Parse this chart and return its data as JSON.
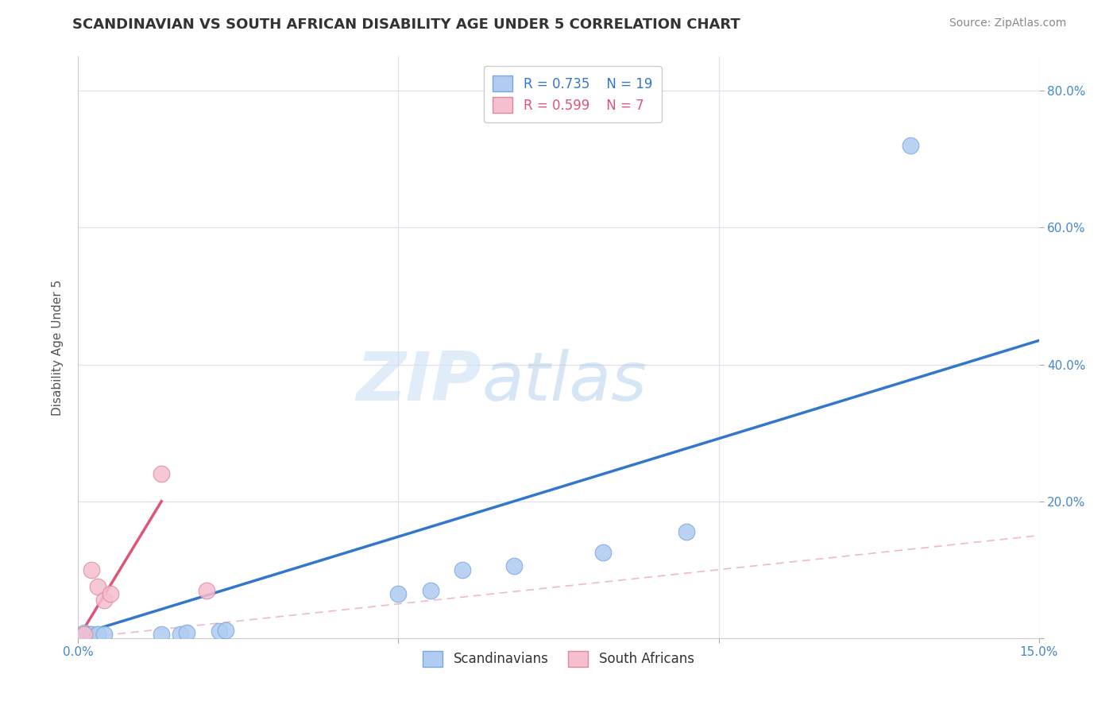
{
  "title": "SCANDINAVIAN VS SOUTH AFRICAN DISABILITY AGE UNDER 5 CORRELATION CHART",
  "source": "Source: ZipAtlas.com",
  "ylabel": "Disability Age Under 5",
  "xlim": [
    0.0,
    0.15
  ],
  "ylim": [
    0.0,
    0.85
  ],
  "grid_color": "#e0e0ee",
  "background_color": "#ffffff",
  "watermark_zip": "ZIP",
  "watermark_atlas": "atlas",
  "scand_points": [
    [
      0.001,
      0.005
    ],
    [
      0.001,
      0.008
    ],
    [
      0.002,
      0.005
    ],
    [
      0.002,
      0.006
    ],
    [
      0.003,
      0.005
    ],
    [
      0.003,
      0.006
    ],
    [
      0.004,
      0.005
    ],
    [
      0.013,
      0.005
    ],
    [
      0.016,
      0.005
    ],
    [
      0.017,
      0.008
    ],
    [
      0.022,
      0.01
    ],
    [
      0.023,
      0.011
    ],
    [
      0.05,
      0.065
    ],
    [
      0.055,
      0.07
    ],
    [
      0.06,
      0.1
    ],
    [
      0.068,
      0.105
    ],
    [
      0.082,
      0.125
    ],
    [
      0.095,
      0.155
    ],
    [
      0.13,
      0.72
    ]
  ],
  "sa_points": [
    [
      0.001,
      0.005
    ],
    [
      0.002,
      0.1
    ],
    [
      0.003,
      0.075
    ],
    [
      0.004,
      0.055
    ],
    [
      0.005,
      0.065
    ],
    [
      0.013,
      0.24
    ],
    [
      0.02,
      0.07
    ]
  ],
  "scand_color": "#b0ccf0",
  "scand_edge_color": "#7aa8dd",
  "sa_color": "#f5bfce",
  "sa_edge_color": "#dd88a0",
  "scand_line_color": "#3377cc",
  "sa_line_color": "#dd5577",
  "diag_line_color": "#f0b8c8",
  "scand_R": "0.735",
  "scand_N": "19",
  "sa_R": "0.599",
  "sa_N": "7",
  "scand_line_x": [
    0.0,
    0.15
  ],
  "scand_line_y": [
    0.005,
    0.435
  ],
  "sa_line_x": [
    0.0,
    0.013
  ],
  "sa_line_y": [
    0.0,
    0.2
  ]
}
